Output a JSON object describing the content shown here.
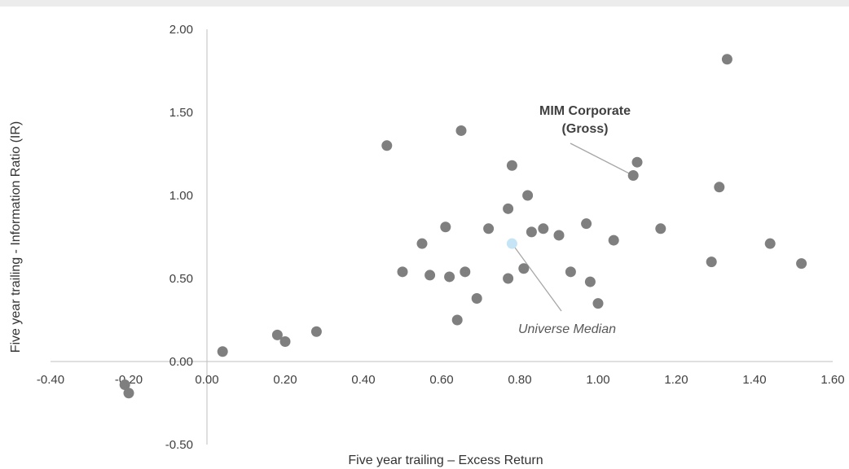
{
  "chart_data": {
    "type": "scatter",
    "title": "",
    "xlabel": "Five year trailing – Excess Return",
    "ylabel": "Five year trailing - Information Ratio (IR)",
    "xlim": [
      -0.4,
      1.6
    ],
    "ylim": [
      -0.5,
      2.0
    ],
    "x_ticks": [
      "-0.40",
      "-0.20",
      "0.00",
      "0.20",
      "0.40",
      "0.60",
      "0.80",
      "1.00",
      "1.20",
      "1.40",
      "1.60"
    ],
    "y_ticks": [
      "-0.50",
      "0.00",
      "0.50",
      "1.00",
      "1.50",
      "2.00"
    ],
    "grid": false,
    "legend": "none",
    "colors": {
      "point": "#7f7f7f",
      "median": "#c5e4f5",
      "leader": "#a6a6a6",
      "axis": "#bfbfbf"
    },
    "points": [
      {
        "x": -0.21,
        "y": -0.14
      },
      {
        "x": -0.2,
        "y": -0.19
      },
      {
        "x": 0.04,
        "y": 0.06
      },
      {
        "x": 0.18,
        "y": 0.16
      },
      {
        "x": 0.2,
        "y": 0.12
      },
      {
        "x": 0.28,
        "y": 0.18
      },
      {
        "x": 0.46,
        "y": 1.3
      },
      {
        "x": 0.5,
        "y": 0.54
      },
      {
        "x": 0.55,
        "y": 0.71
      },
      {
        "x": 0.57,
        "y": 0.52
      },
      {
        "x": 0.61,
        "y": 0.81
      },
      {
        "x": 0.62,
        "y": 0.51
      },
      {
        "x": 0.64,
        "y": 0.25
      },
      {
        "x": 0.65,
        "y": 1.39
      },
      {
        "x": 0.66,
        "y": 0.54
      },
      {
        "x": 0.69,
        "y": 0.38
      },
      {
        "x": 0.72,
        "y": 0.8
      },
      {
        "x": 0.77,
        "y": 0.92
      },
      {
        "x": 0.77,
        "y": 0.5
      },
      {
        "x": 0.78,
        "y": 1.18
      },
      {
        "x": 0.81,
        "y": 0.56
      },
      {
        "x": 0.82,
        "y": 1.0
      },
      {
        "x": 0.83,
        "y": 0.78
      },
      {
        "x": 0.86,
        "y": 0.8
      },
      {
        "x": 0.9,
        "y": 0.76
      },
      {
        "x": 0.93,
        "y": 0.54
      },
      {
        "x": 0.97,
        "y": 0.83
      },
      {
        "x": 0.98,
        "y": 0.48
      },
      {
        "x": 1.0,
        "y": 0.35
      },
      {
        "x": 1.04,
        "y": 0.73
      },
      {
        "x": 1.09,
        "y": 1.12
      },
      {
        "x": 1.1,
        "y": 1.2
      },
      {
        "x": 1.16,
        "y": 0.8
      },
      {
        "x": 1.29,
        "y": 0.6
      },
      {
        "x": 1.31,
        "y": 1.05
      },
      {
        "x": 1.33,
        "y": 1.82
      },
      {
        "x": 1.44,
        "y": 0.71
      },
      {
        "x": 1.52,
        "y": 0.59
      }
    ],
    "median_point": {
      "x": 0.78,
      "y": 0.71
    },
    "annotations": [
      {
        "id": "mim",
        "lines": [
          "MIM Corporate",
          "(Gross)"
        ],
        "style": "bold",
        "target": {
          "x": 1.09,
          "y": 1.12
        }
      },
      {
        "id": "median",
        "lines": [
          "Universe Median"
        ],
        "style": "italic",
        "target": {
          "x": 0.78,
          "y": 0.71
        }
      }
    ]
  }
}
